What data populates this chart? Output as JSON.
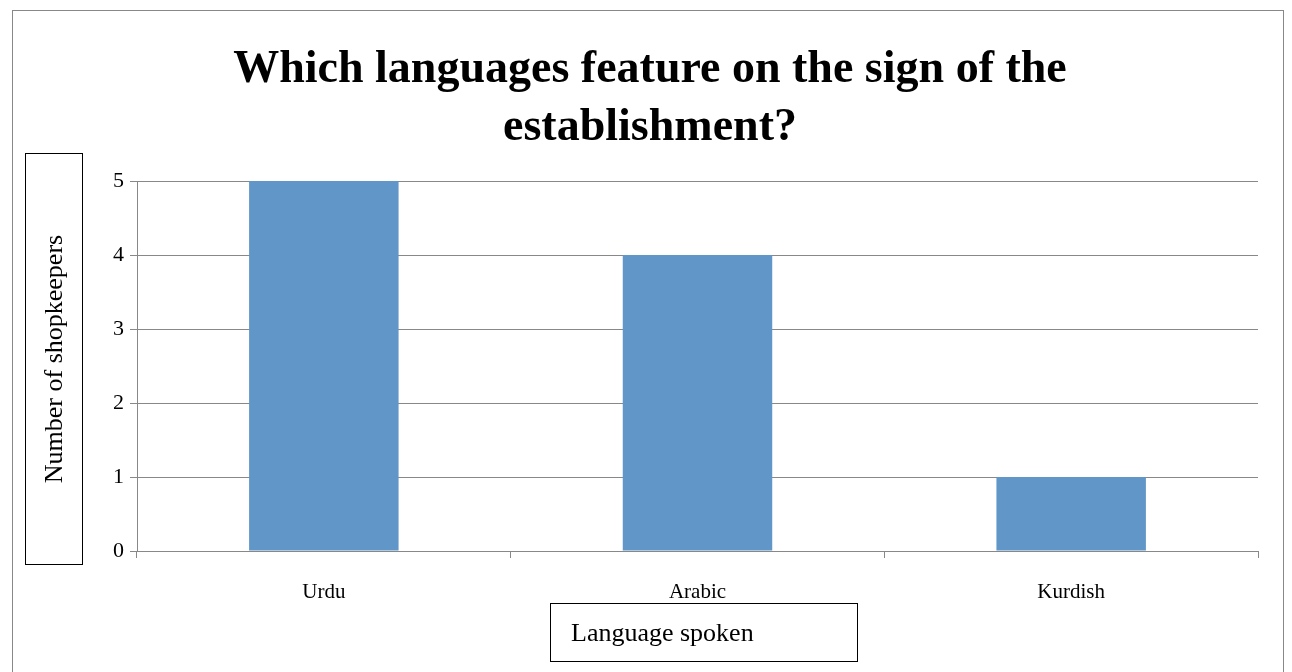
{
  "chart_data": {
    "type": "bar",
    "title": "Which languages feature on the sign of the establishment?",
    "xlabel": "Language spoken",
    "ylabel": "Number of shopkeepers",
    "categories": [
      "Urdu",
      "Arabic",
      "Kurdish"
    ],
    "values": [
      5,
      4,
      1
    ],
    "color": "#6096c8",
    "ylim": [
      0,
      5
    ],
    "yticks": [
      0,
      1,
      2,
      3,
      4,
      5
    ],
    "grid": "y"
  }
}
